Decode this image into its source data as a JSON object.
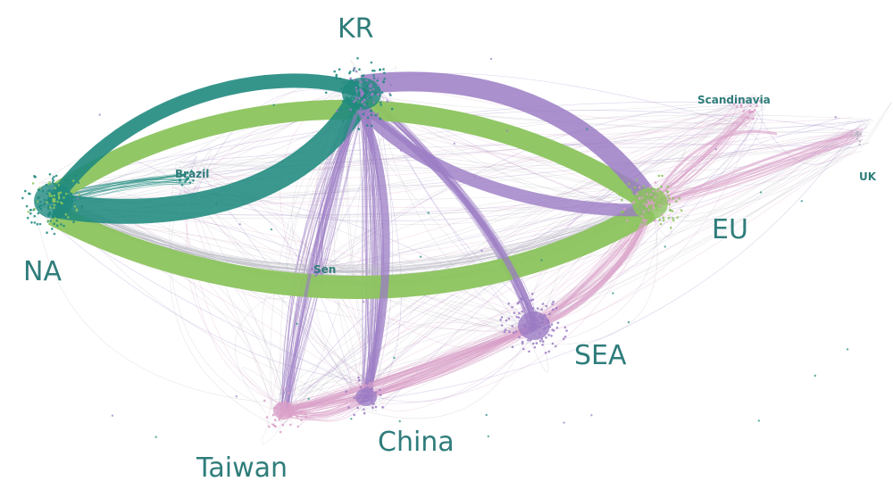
{
  "colors": {
    "teal": "#1f8a7e",
    "green": "#8cc45e",
    "purple": "#9b7cc4",
    "pink": "#d9a0c8",
    "gray": "#b8b8c4",
    "label": "#2f7d7b"
  },
  "regions": [
    {
      "id": "kr",
      "label": "KR"
    },
    {
      "id": "na",
      "label": "NA"
    },
    {
      "id": "eu",
      "label": "EU"
    },
    {
      "id": "sea",
      "label": "SEA"
    },
    {
      "id": "china",
      "label": "China"
    },
    {
      "id": "taiwan",
      "label": "Taiwan"
    }
  ],
  "minor_regions": [
    {
      "id": "brazil",
      "label": "Brazil"
    },
    {
      "id": "sen",
      "label": "Sen"
    },
    {
      "id": "scandinavia",
      "label": "Scandinavia"
    },
    {
      "id": "uk",
      "label": "UK"
    }
  ]
}
